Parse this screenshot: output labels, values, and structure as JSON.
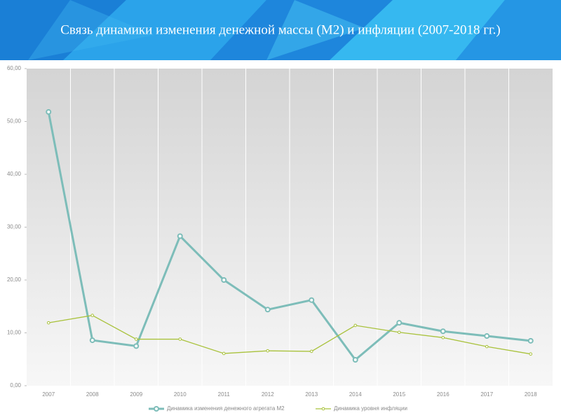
{
  "chart_data": {
    "type": "line",
    "title": "Связь динамики изменения денежной массы (М2) и инфляции (2007-2018 гг.)",
    "categories": [
      "2007",
      "2008",
      "2009",
      "2010",
      "2011",
      "2012",
      "2013",
      "2014",
      "2015",
      "2016",
      "2017",
      "2018"
    ],
    "series": [
      {
        "name": "Динамика изменения денежного агрегата М2",
        "color": "#7dbdb9",
        "values": [
          51.8,
          8.6,
          7.5,
          28.3,
          20.0,
          14.4,
          16.2,
          4.9,
          11.9,
          10.3,
          9.4,
          8.5
        ]
      },
      {
        "name": "Динамика уровня инфляции",
        "color": "#a9c23c",
        "values": [
          11.9,
          13.3,
          8.8,
          8.8,
          6.1,
          6.6,
          6.5,
          11.4,
          10.1,
          9.1,
          7.4,
          6.0
        ]
      }
    ],
    "ylim": [
      0,
      60
    ],
    "yticks": [
      {
        "value": 0,
        "label": "0,00"
      },
      {
        "value": 10,
        "label": "10,00"
      },
      {
        "value": 20,
        "label": "20,00"
      },
      {
        "value": 30,
        "label": "30,00"
      },
      {
        "value": 40,
        "label": "40,00"
      },
      {
        "value": 50,
        "label": "50,00"
      },
      {
        "value": 60,
        "label": "60,00"
      }
    ],
    "grid": true,
    "legend": "bottom"
  }
}
